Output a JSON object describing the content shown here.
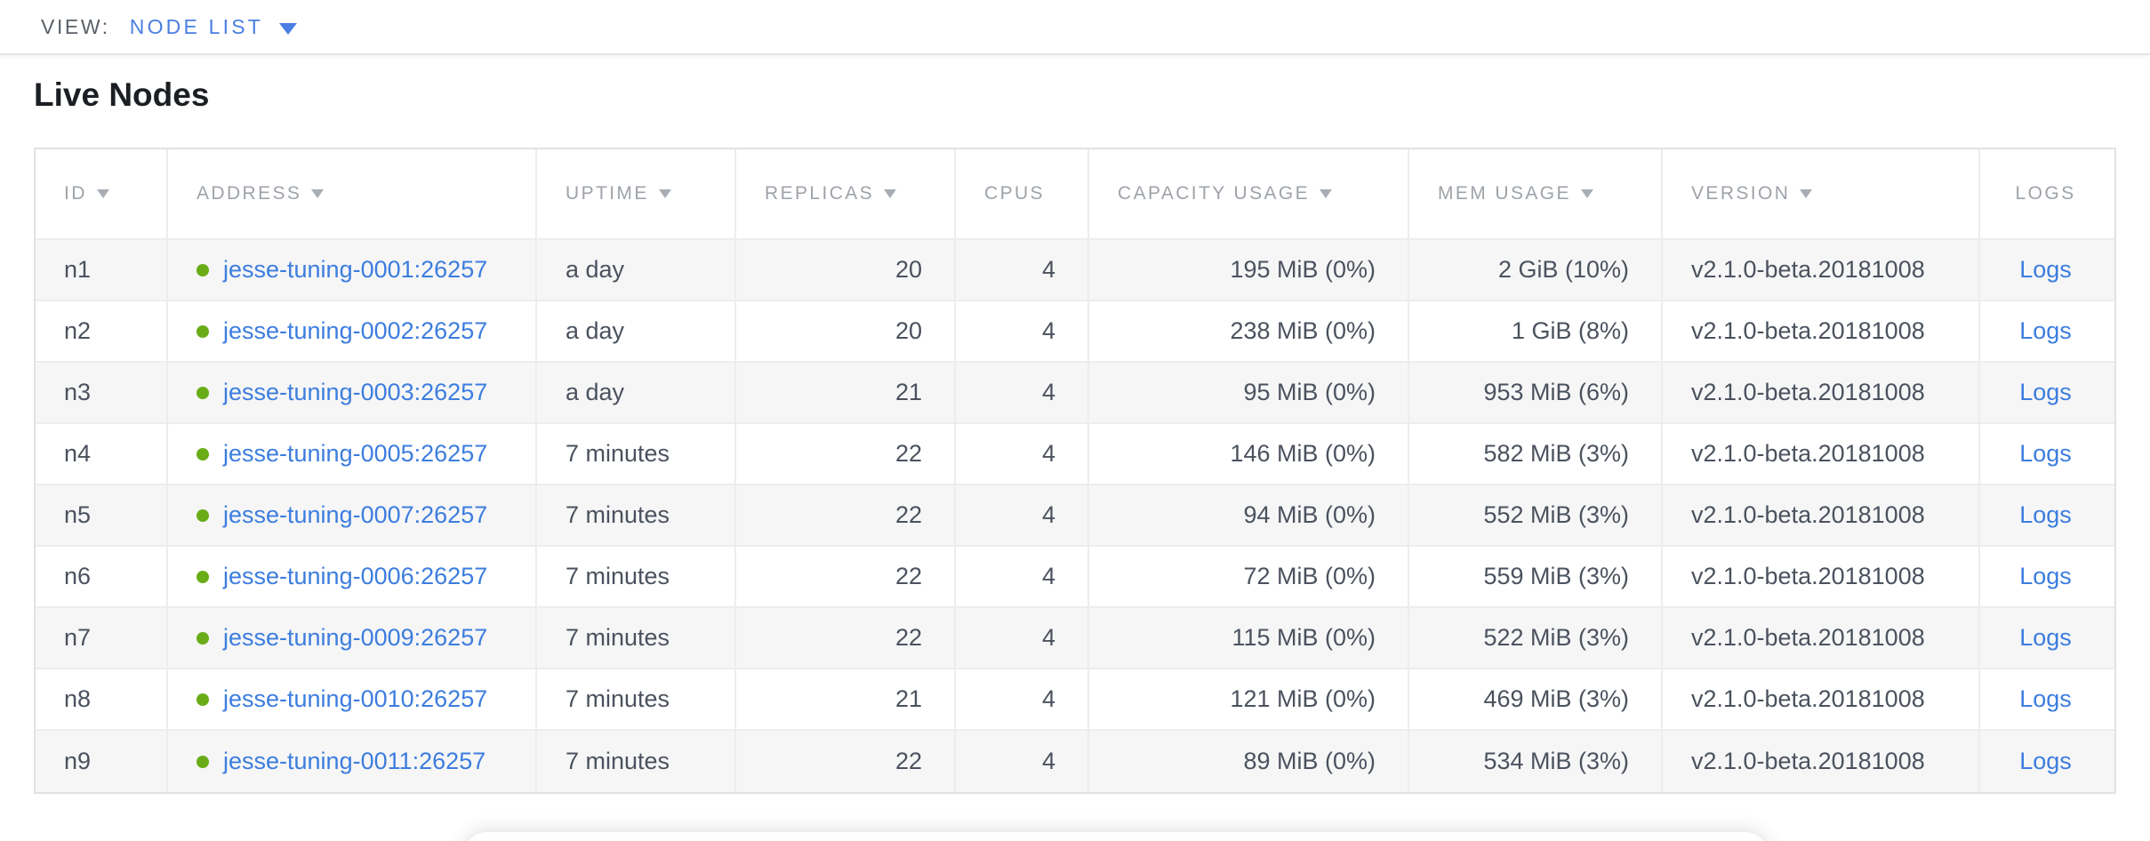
{
  "view_bar": {
    "label": "VIEW:",
    "selected_view": "NODE LIST"
  },
  "page": {
    "title": "Live Nodes"
  },
  "colors": {
    "link_blue": "#3c7dde",
    "dropdown_blue": "#4a7ee2",
    "node_live_green": "#69ac17",
    "header_gray": "#9ea3a9",
    "body_text": "#4b525e",
    "row_stripe": "#f6f6f7"
  },
  "table": {
    "columns": [
      {
        "key": "id",
        "label": "ID",
        "sortable": true,
        "align": "left"
      },
      {
        "key": "address",
        "label": "ADDRESS",
        "sortable": true,
        "align": "left"
      },
      {
        "key": "uptime",
        "label": "UPTIME",
        "sortable": true,
        "align": "left"
      },
      {
        "key": "replicas",
        "label": "REPLICAS",
        "sortable": true,
        "align": "right"
      },
      {
        "key": "cpus",
        "label": "CPUS",
        "sortable": false,
        "align": "right"
      },
      {
        "key": "capacity",
        "label": "CAPACITY USAGE",
        "sortable": true,
        "align": "right"
      },
      {
        "key": "mem",
        "label": "MEM USAGE",
        "sortable": true,
        "align": "right"
      },
      {
        "key": "version",
        "label": "VERSION",
        "sortable": true,
        "align": "left"
      },
      {
        "key": "logs",
        "label": "LOGS",
        "sortable": false,
        "align": "center"
      }
    ],
    "rows": [
      {
        "id": "n1",
        "address": "jesse-tuning-0001:26257",
        "uptime": "a day",
        "replicas": "20",
        "cpus": "4",
        "capacity": "195 MiB (0%)",
        "mem": "2 GiB (10%)",
        "version": "v2.1.0-beta.20181008",
        "logs": "Logs"
      },
      {
        "id": "n2",
        "address": "jesse-tuning-0002:26257",
        "uptime": "a day",
        "replicas": "20",
        "cpus": "4",
        "capacity": "238 MiB (0%)",
        "mem": "1 GiB (8%)",
        "version": "v2.1.0-beta.20181008",
        "logs": "Logs"
      },
      {
        "id": "n3",
        "address": "jesse-tuning-0003:26257",
        "uptime": "a day",
        "replicas": "21",
        "cpus": "4",
        "capacity": "95 MiB (0%)",
        "mem": "953 MiB (6%)",
        "version": "v2.1.0-beta.20181008",
        "logs": "Logs"
      },
      {
        "id": "n4",
        "address": "jesse-tuning-0005:26257",
        "uptime": "7 minutes",
        "replicas": "22",
        "cpus": "4",
        "capacity": "146 MiB (0%)",
        "mem": "582 MiB (3%)",
        "version": "v2.1.0-beta.20181008",
        "logs": "Logs"
      },
      {
        "id": "n5",
        "address": "jesse-tuning-0007:26257",
        "uptime": "7 minutes",
        "replicas": "22",
        "cpus": "4",
        "capacity": "94 MiB (0%)",
        "mem": "552 MiB (3%)",
        "version": "v2.1.0-beta.20181008",
        "logs": "Logs"
      },
      {
        "id": "n6",
        "address": "jesse-tuning-0006:26257",
        "uptime": "7 minutes",
        "replicas": "22",
        "cpus": "4",
        "capacity": "72 MiB (0%)",
        "mem": "559 MiB (3%)",
        "version": "v2.1.0-beta.20181008",
        "logs": "Logs"
      },
      {
        "id": "n7",
        "address": "jesse-tuning-0009:26257",
        "uptime": "7 minutes",
        "replicas": "22",
        "cpus": "4",
        "capacity": "115 MiB (0%)",
        "mem": "522 MiB (3%)",
        "version": "v2.1.0-beta.20181008",
        "logs": "Logs"
      },
      {
        "id": "n8",
        "address": "jesse-tuning-0010:26257",
        "uptime": "7 minutes",
        "replicas": "21",
        "cpus": "4",
        "capacity": "121 MiB (0%)",
        "mem": "469 MiB (3%)",
        "version": "v2.1.0-beta.20181008",
        "logs": "Logs"
      },
      {
        "id": "n9",
        "address": "jesse-tuning-0011:26257",
        "uptime": "7 minutes",
        "replicas": "22",
        "cpus": "4",
        "capacity": "89 MiB (0%)",
        "mem": "534 MiB (3%)",
        "version": "v2.1.0-beta.20181008",
        "logs": "Logs"
      }
    ]
  }
}
